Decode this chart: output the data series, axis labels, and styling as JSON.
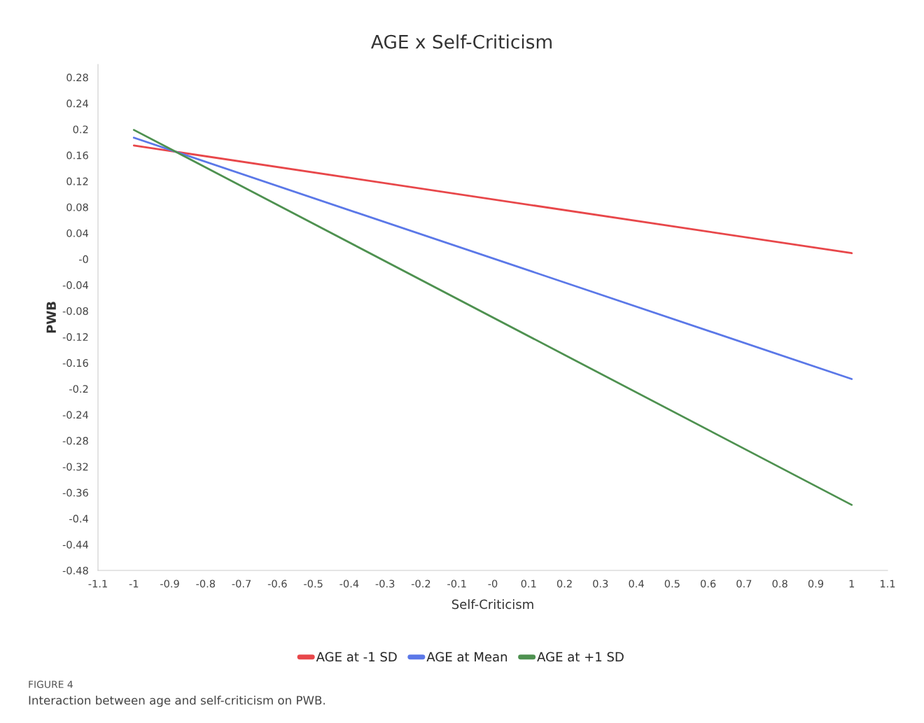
{
  "chart_data": {
    "type": "line",
    "title": "AGE x Self-Criticism",
    "xlabel": "Self-Criticism",
    "ylabel": "PWB",
    "x": [
      -1,
      1
    ],
    "series": [
      {
        "name": "AGE at -1 SD",
        "color": "#e8474a",
        "values": [
          0.175,
          0.009
        ]
      },
      {
        "name": "AGE at Mean",
        "color": "#5b78e8",
        "values": [
          0.187,
          -0.185
        ]
      },
      {
        "name": "AGE at +1 SD",
        "color": "#4e9150",
        "values": [
          0.199,
          -0.379
        ]
      }
    ],
    "xlim": [
      -1.1,
      1.1
    ],
    "xticks": [
      -1.1,
      -1,
      -0.9,
      -0.8,
      -0.7,
      -0.6,
      -0.5,
      -0.4,
      -0.3,
      -0.2,
      -0.1,
      {
        "value": 0,
        "label": "-0"
      },
      0.1,
      0.2,
      0.3,
      0.4,
      0.5,
      0.6,
      0.7,
      0.8,
      0.9,
      1,
      1.1
    ],
    "ylim": [
      -0.48,
      0.3
    ],
    "yticks": [
      -0.48,
      -0.44,
      -0.4,
      -0.36,
      -0.32,
      -0.28,
      -0.24,
      -0.2,
      -0.16,
      -0.12,
      -0.08,
      -0.04,
      {
        "value": 0,
        "label": "-0"
      },
      0.04,
      0.08,
      0.12,
      0.16,
      0.2,
      0.24,
      0.28
    ],
    "grid": false,
    "legend": "bottom",
    "marker": "none",
    "line_style": "solid",
    "annotations": [
      "FIGURE 4",
      "Interaction between age and self-criticism on PWB."
    ]
  }
}
